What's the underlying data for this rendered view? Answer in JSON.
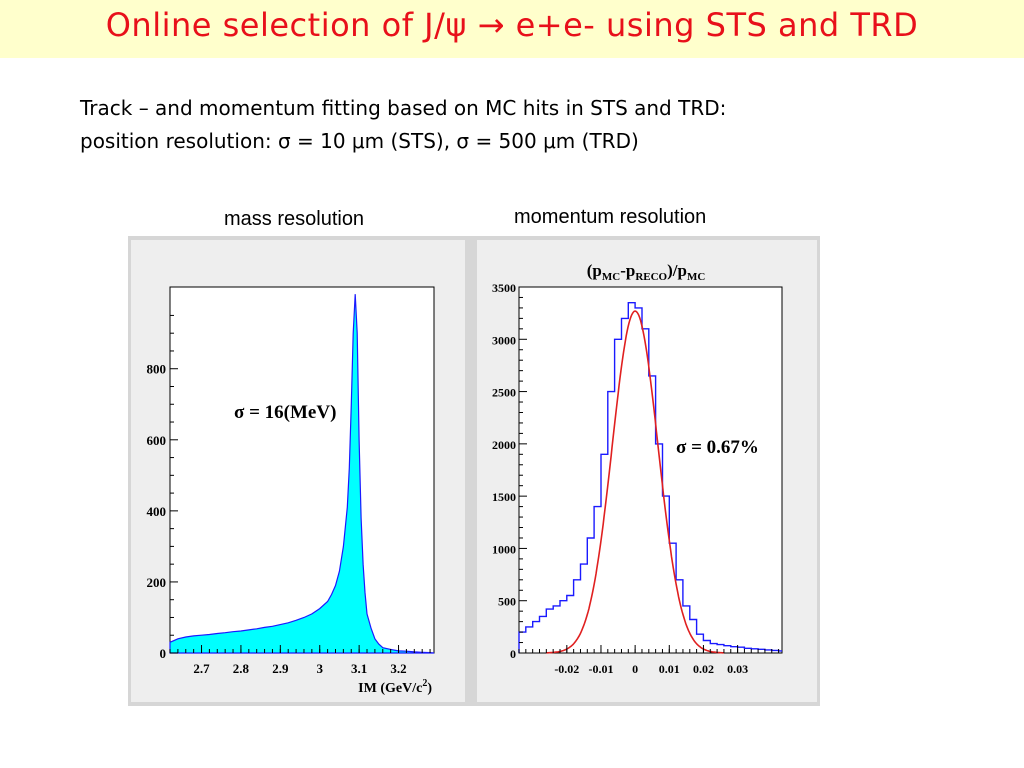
{
  "title": {
    "text": "Online selection of J/ψ → e+e- using STS and TRD"
  },
  "body": {
    "line1": "Track – and momentum fitting based on MC hits in STS and TRD:",
    "line2": "position resolution: σ = 10 μm (STS), σ = 500 μm (TRD)"
  },
  "captions": {
    "mass": "mass resolution",
    "momentum": "momentum resolution"
  },
  "colors": {
    "title": "#e8101a",
    "title_background": "#ffffcc",
    "histogram_fill": "#00ffff",
    "histogram_line": "#1a1aff",
    "fit_curve": "#e02020",
    "panel_background": "#eeeeee"
  },
  "chart_data": [
    {
      "type": "area",
      "title": "",
      "xlabel": "IM (GeV/c²)",
      "ylabel": "",
      "xlim": [
        2.62,
        3.29
      ],
      "ylim": [
        0,
        1030
      ],
      "x_ticks": [
        "2.7",
        "2.8",
        "2.9",
        "3",
        "3.1",
        "3.2"
      ],
      "y_ticks": [
        "0",
        "200",
        "400",
        "600",
        "800"
      ],
      "annotation": "σ = 16(MeV)",
      "series": [
        {
          "x": [
            2.62,
            2.64,
            2.66,
            2.68,
            2.7,
            2.72,
            2.74,
            2.76,
            2.78,
            2.8,
            2.82,
            2.84,
            2.86,
            2.88,
            2.9,
            2.92,
            2.94,
            2.96,
            2.98,
            3.0,
            3.02,
            3.03,
            3.04,
            3.05,
            3.06,
            3.07,
            3.075,
            3.08,
            3.085,
            3.09,
            3.095,
            3.1,
            3.105,
            3.11,
            3.115,
            3.12,
            3.13,
            3.14,
            3.15,
            3.16,
            3.18,
            3.2,
            3.22,
            3.24,
            3.26,
            3.28,
            3.29
          ],
          "values": [
            30,
            40,
            45,
            48,
            50,
            52,
            55,
            57,
            60,
            62,
            65,
            68,
            72,
            75,
            80,
            85,
            92,
            100,
            110,
            125,
            145,
            165,
            190,
            230,
            300,
            410,
            520,
            700,
            900,
            1010,
            900,
            600,
            380,
            250,
            170,
            110,
            70,
            40,
            25,
            15,
            10,
            6,
            5,
            3,
            2,
            1,
            0
          ]
        }
      ]
    },
    {
      "type": "line",
      "title": "(pMC-pRECO)/pMC",
      "xlabel": "",
      "ylabel": "",
      "xlim": [
        -0.034,
        0.043
      ],
      "ylim": [
        0,
        3500
      ],
      "x_ticks": [
        "-0.02",
        "-0.01",
        "0",
        "0.01",
        "0.02",
        "0.03"
      ],
      "y_ticks": [
        "0",
        "500",
        "1000",
        "1500",
        "2000",
        "2500",
        "3000",
        "3500"
      ],
      "annotation": "σ = 0.67%",
      "series": [
        {
          "style": "histogram",
          "x": [
            -0.034,
            -0.032,
            -0.03,
            -0.028,
            -0.026,
            -0.024,
            -0.022,
            -0.02,
            -0.018,
            -0.016,
            -0.014,
            -0.012,
            -0.01,
            -0.008,
            -0.006,
            -0.004,
            -0.002,
            0.0,
            0.002,
            0.004,
            0.006,
            0.008,
            0.01,
            0.012,
            0.014,
            0.016,
            0.018,
            0.02,
            0.022,
            0.024,
            0.026,
            0.028,
            0.03,
            0.032,
            0.034,
            0.036,
            0.038,
            0.04,
            0.042
          ],
          "values": [
            200,
            250,
            300,
            350,
            420,
            450,
            500,
            550,
            700,
            850,
            1100,
            1400,
            1900,
            2500,
            3000,
            3200,
            3350,
            3300,
            3100,
            2650,
            2000,
            1500,
            1050,
            700,
            450,
            320,
            180,
            120,
            90,
            80,
            70,
            60,
            55,
            45,
            40,
            35,
            30,
            25,
            20
          ]
        },
        {
          "style": "gaussian-fit",
          "mean": 0,
          "sigma": 0.0067,
          "amplitude": 3270
        }
      ]
    }
  ]
}
